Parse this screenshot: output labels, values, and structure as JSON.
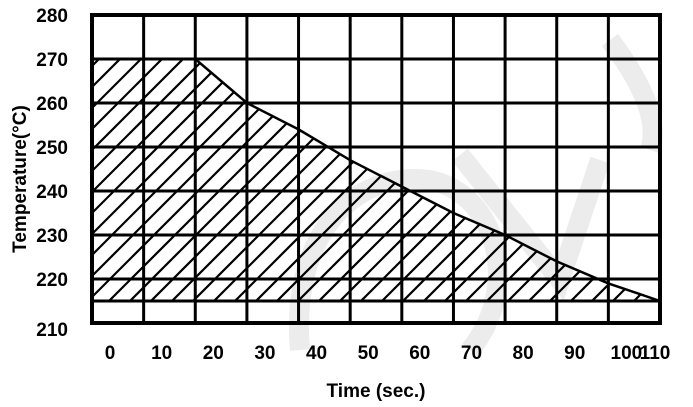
{
  "chart_data": {
    "type": "area",
    "title": "",
    "xlabel": "Time (sec.)",
    "ylabel": "Temperature(°C)",
    "xlim": [
      0,
      110
    ],
    "ylim": [
      210,
      280
    ],
    "x_ticks": [
      0,
      10,
      20,
      30,
      40,
      50,
      60,
      70,
      80,
      90,
      100,
      110
    ],
    "y_ticks": [
      210,
      220,
      230,
      240,
      250,
      260,
      270,
      280
    ],
    "y_baseline": 215,
    "grid": true,
    "fill": "diagonal-hatch",
    "boundary": {
      "x": [
        0,
        20,
        30,
        40,
        50,
        60,
        70,
        80,
        90,
        100,
        110
      ],
      "y": [
        270,
        270,
        260,
        254,
        247,
        241,
        235,
        230,
        224,
        219,
        215
      ]
    }
  },
  "colors": {
    "ink": "#000000",
    "background": "#ffffff",
    "watermark": "#c8c8c8"
  }
}
